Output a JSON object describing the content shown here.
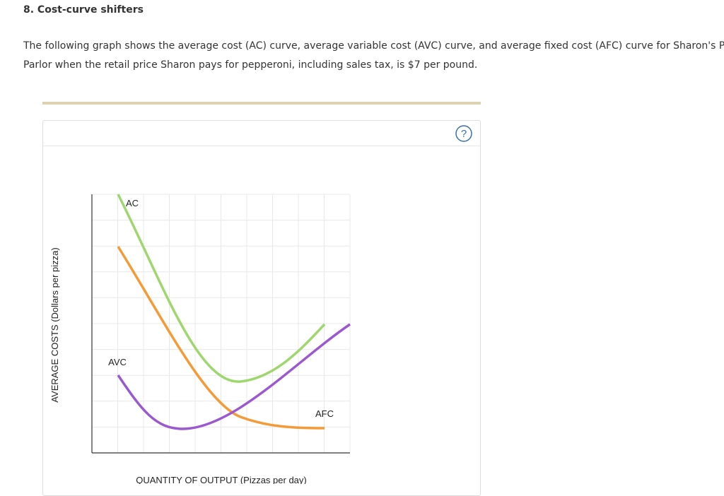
{
  "header": {
    "title": "8. Cost-curve shifters"
  },
  "intro": {
    "lines": [
      "The following graph shows the average cost (AC) curve, average variable cost (AVC) curve, and average fixed cost (AFC) curve for Sharon's Pizza",
      "Parlor when the retail price Sharon pays for pepperoni, including sales tax, is $7 per pound."
    ]
  },
  "graph": {
    "help_icon": "?",
    "y_axis_label": "AVERAGE COSTS (Dollars per pizza)",
    "x_axis_label": "QUANTITY OF OUTPUT (Pizzas per day)",
    "curve_labels": [
      "AC",
      "AVC",
      "AFC"
    ]
  }
}
